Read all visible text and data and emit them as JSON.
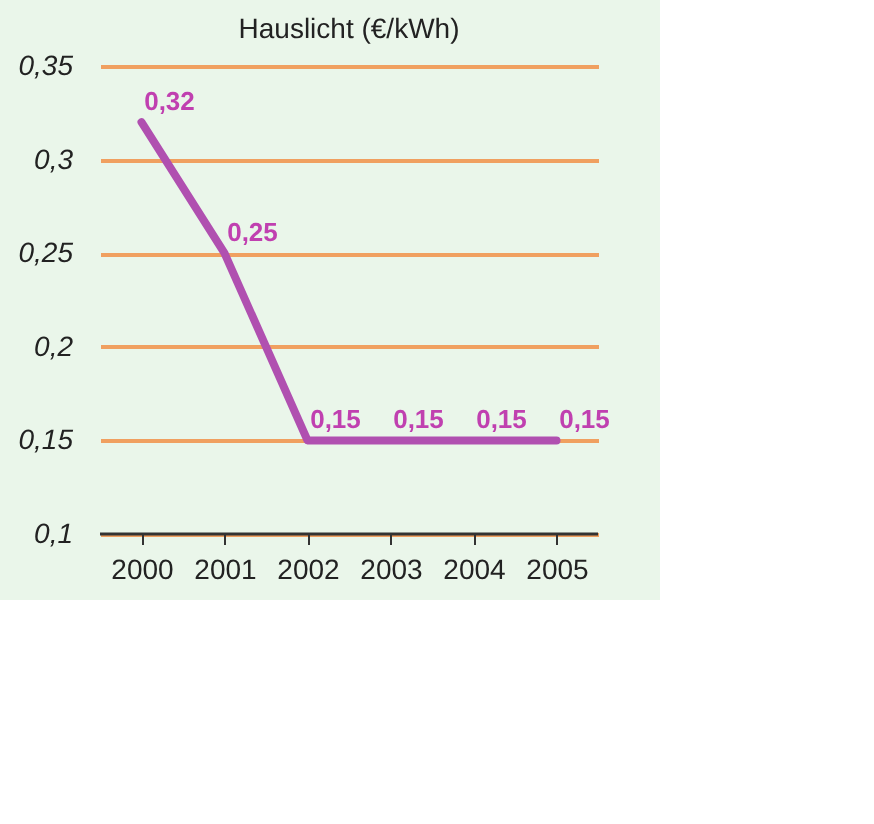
{
  "chart_data": {
    "type": "line",
    "title": "Hauslicht (€/kWh)",
    "categories": [
      "2000",
      "2001",
      "2002",
      "2003",
      "2004",
      "2005"
    ],
    "series": [
      {
        "color": "#b050b0",
        "values": [
          0.32,
          0.25,
          0.15,
          0.15,
          0.15,
          0.15
        ],
        "value_labels": [
          "0,32",
          "0,25",
          "0,15",
          "0,15",
          "0,15",
          "0,15"
        ]
      }
    ],
    "ylim": [
      0.1,
      0.35
    ],
    "yticks": [
      {
        "value": 0.1,
        "label": "0,1"
      },
      {
        "value": 0.15,
        "label": "0,15"
      },
      {
        "value": 0.2,
        "label": "0,2"
      },
      {
        "value": 0.25,
        "label": "0,25"
      },
      {
        "value": 0.3,
        "label": "0,3"
      },
      {
        "value": 0.35,
        "label": "0,35"
      }
    ],
    "grid": "y",
    "marker": "none",
    "line_style": "solid"
  }
}
